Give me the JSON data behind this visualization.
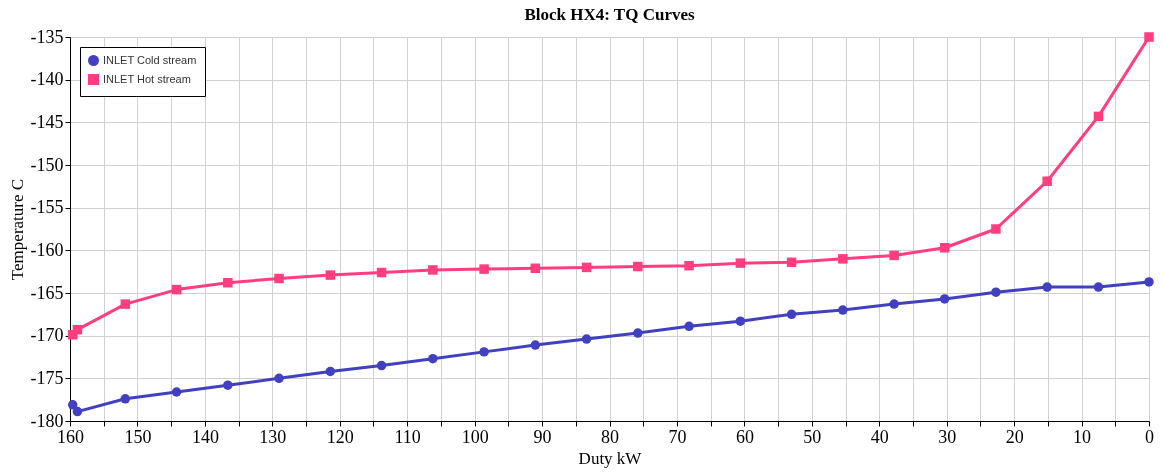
{
  "chart_data": {
    "type": "line",
    "title": "Block HX4: TQ Curves",
    "xlabel": "Duty kW",
    "ylabel": "Temperature C",
    "x": [
      159.6,
      158.9,
      151.8,
      144.2,
      136.6,
      129.0,
      121.4,
      113.8,
      106.2,
      98.6,
      91.0,
      83.4,
      75.8,
      68.2,
      60.6,
      53.0,
      45.4,
      37.8,
      30.3,
      22.7,
      15.1,
      7.5,
      0
    ],
    "series": [
      {
        "name": "INLET Cold stream",
        "color": "#4040c0",
        "marker": "circle",
        "values": [
          -178.1,
          -178.9,
          -177.4,
          -176.6,
          -175.8,
          -175.0,
          -174.2,
          -173.5,
          -172.7,
          -171.9,
          -171.1,
          -170.4,
          -169.7,
          -168.9,
          -168.3,
          -167.5,
          -167.0,
          -166.3,
          -165.7,
          -164.9,
          -164.3,
          -164.3,
          -163.7
        ]
      },
      {
        "name": "INLET Hot stream",
        "color": "#ff3d7f",
        "marker": "square",
        "values": [
          -169.9,
          -169.3,
          -166.3,
          -164.6,
          -163.8,
          -163.3,
          -162.9,
          -162.6,
          -162.3,
          -162.2,
          -162.1,
          -162.0,
          -161.9,
          -161.8,
          -161.5,
          -161.4,
          -161.0,
          -160.6,
          -159.7,
          -157.5,
          -151.9,
          -144.3,
          -135.0
        ]
      }
    ],
    "xlim": [
      160,
      0
    ],
    "xticks": [
      160,
      {
        "value": 155,
        "label": null
      },
      150,
      {
        "value": 145,
        "label": null
      },
      140,
      {
        "value": 135,
        "label": null
      },
      130,
      {
        "value": 125,
        "label": null
      },
      120,
      {
        "value": 115,
        "label": null
      },
      110,
      {
        "value": 105,
        "label": null
      },
      100,
      {
        "value": 95,
        "label": null
      },
      90,
      {
        "value": 85,
        "label": null
      },
      80,
      {
        "value": 75,
        "label": null
      },
      70,
      {
        "value": 65,
        "label": null
      },
      60,
      {
        "value": 55,
        "label": null
      },
      50,
      {
        "value": 45,
        "label": null
      },
      40,
      {
        "value": 35,
        "label": null
      },
      30,
      {
        "value": 25,
        "label": null
      },
      20,
      {
        "value": 15,
        "label": null
      },
      10,
      {
        "value": 5,
        "label": null
      },
      0
    ],
    "ylim": [
      -180,
      -135
    ],
    "yticks": [
      -180,
      -175,
      -170,
      -165,
      -160,
      -155,
      -150,
      -145,
      -140,
      -135
    ],
    "grid": true,
    "legend": "top left",
    "line_style": "solid"
  }
}
